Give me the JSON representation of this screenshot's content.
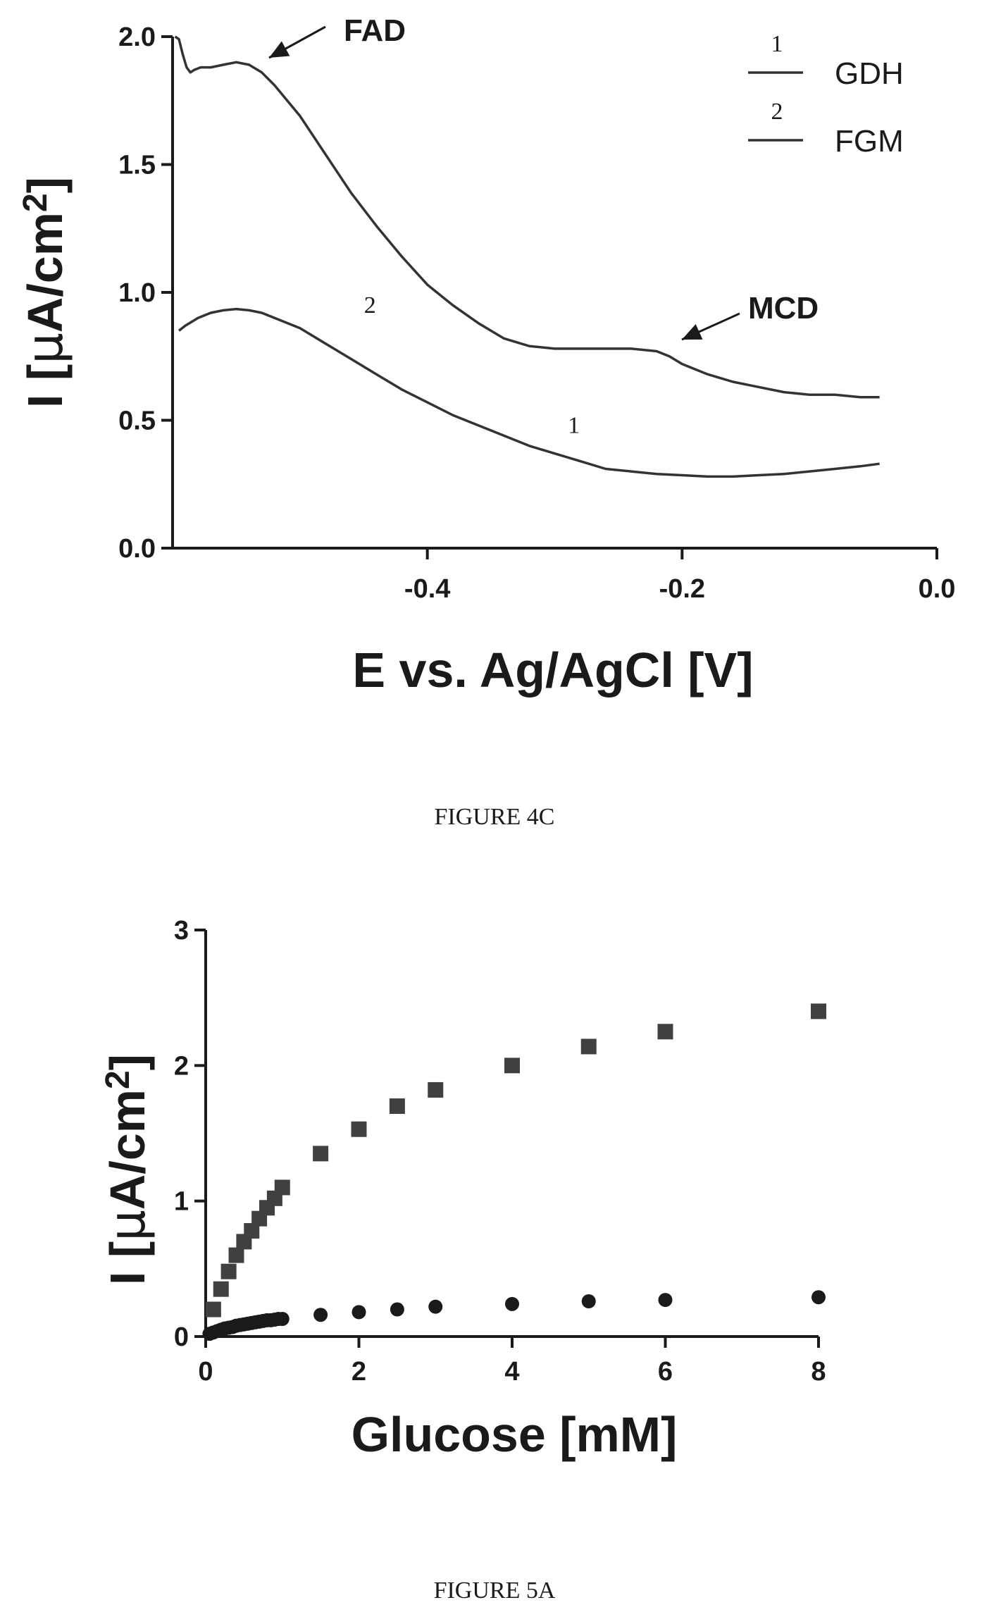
{
  "chart_data": [
    {
      "type": "line",
      "xlabel": "E vs. Ag/AgCl [V]",
      "ylabel_main": "I [",
      "ylabel_mu": "μ",
      "ylabel_unit": "A/cm",
      "ylabel_sup": "2",
      "ylabel_close": "]",
      "xlim": [
        -0.6,
        0.0
      ],
      "ylim": [
        0.0,
        2.0
      ],
      "xticks": [
        "-0.4",
        "-0.2",
        "0.0"
      ],
      "xtick_values": [
        -0.4,
        -0.2,
        0.0
      ],
      "yticks": [
        "0.0",
        "0.5",
        "1.0",
        "1.5",
        "2.0"
      ],
      "ytick_values": [
        0.0,
        0.5,
        1.0,
        1.5,
        2.0
      ],
      "legend_position": "top-right",
      "legend": [
        {
          "number": "1",
          "name": "GDH"
        },
        {
          "number": "2",
          "name": "FGM"
        }
      ],
      "annotations": [
        {
          "text": "FAD",
          "x": -0.54,
          "y": 1.9
        },
        {
          "text": "MCD",
          "x": -0.2,
          "y": 0.78
        }
      ],
      "series": [
        {
          "name": "GDH",
          "label": "1",
          "label_at": [
            -0.285,
            0.45
          ],
          "x": [
            -0.595,
            -0.59,
            -0.58,
            -0.57,
            -0.56,
            -0.55,
            -0.54,
            -0.53,
            -0.52,
            -0.5,
            -0.48,
            -0.46,
            -0.44,
            -0.42,
            -0.4,
            -0.38,
            -0.36,
            -0.34,
            -0.32,
            -0.3,
            -0.28,
            -0.26,
            -0.24,
            -0.22,
            -0.2,
            -0.18,
            -0.16,
            -0.14,
            -0.12,
            -0.1,
            -0.08,
            -0.06,
            -0.045
          ],
          "y": [
            0.85,
            0.87,
            0.9,
            0.92,
            0.93,
            0.935,
            0.93,
            0.92,
            0.9,
            0.86,
            0.8,
            0.74,
            0.68,
            0.62,
            0.57,
            0.52,
            0.48,
            0.44,
            0.4,
            0.37,
            0.34,
            0.31,
            0.3,
            0.29,
            0.285,
            0.28,
            0.28,
            0.285,
            0.29,
            0.3,
            0.31,
            0.32,
            0.33
          ]
        },
        {
          "name": "FGM",
          "label": "2",
          "label_at": [
            -0.445,
            0.92
          ],
          "x": [
            -0.598,
            -0.595,
            -0.592,
            -0.589,
            -0.586,
            -0.583,
            -0.578,
            -0.57,
            -0.56,
            -0.55,
            -0.54,
            -0.53,
            -0.52,
            -0.5,
            -0.48,
            -0.46,
            -0.44,
            -0.42,
            -0.4,
            -0.38,
            -0.36,
            -0.34,
            -0.32,
            -0.3,
            -0.28,
            -0.26,
            -0.24,
            -0.22,
            -0.21,
            -0.2,
            -0.18,
            -0.16,
            -0.14,
            -0.12,
            -0.1,
            -0.08,
            -0.06,
            -0.045
          ],
          "y": [
            2.0,
            1.99,
            1.93,
            1.88,
            1.86,
            1.87,
            1.88,
            1.88,
            1.89,
            1.9,
            1.89,
            1.86,
            1.81,
            1.69,
            1.54,
            1.39,
            1.26,
            1.14,
            1.03,
            0.95,
            0.88,
            0.82,
            0.79,
            0.78,
            0.78,
            0.78,
            0.78,
            0.77,
            0.75,
            0.72,
            0.68,
            0.65,
            0.63,
            0.61,
            0.6,
            0.6,
            0.59,
            0.59
          ]
        }
      ]
    },
    {
      "type": "scatter",
      "xlabel": "Glucose [mM]",
      "ylabel_main": "I [",
      "ylabel_mu": "μ",
      "ylabel_unit": "A/cm",
      "ylabel_sup": "2",
      "ylabel_close": "]",
      "xlim": [
        0,
        8
      ],
      "ylim": [
        0,
        3
      ],
      "xticks": [
        "0",
        "2",
        "4",
        "6",
        "8"
      ],
      "xtick_values": [
        0,
        2,
        4,
        6,
        8
      ],
      "yticks": [
        "0",
        "1",
        "2",
        "3"
      ],
      "ytick_values": [
        0,
        1,
        2,
        3
      ],
      "series": [
        {
          "marker": "square",
          "x": [
            0.1,
            0.2,
            0.3,
            0.4,
            0.5,
            0.6,
            0.7,
            0.8,
            0.9,
            1.0,
            1.5,
            2.0,
            2.5,
            3.0,
            4.0,
            5.0,
            6.0,
            8.0
          ],
          "y": [
            0.2,
            0.35,
            0.48,
            0.6,
            0.7,
            0.78,
            0.87,
            0.95,
            1.02,
            1.1,
            1.35,
            1.53,
            1.7,
            1.82,
            2.0,
            2.14,
            2.25,
            2.4
          ]
        },
        {
          "marker": "circle",
          "x": [
            0.05,
            0.1,
            0.15,
            0.2,
            0.25,
            0.3,
            0.35,
            0.4,
            0.45,
            0.5,
            0.55,
            0.6,
            0.65,
            0.7,
            0.75,
            0.8,
            0.85,
            0.9,
            0.95,
            1.0,
            1.5,
            2.0,
            2.5,
            3.0,
            4.0,
            5.0,
            6.0,
            8.0
          ],
          "y": [
            0.02,
            0.03,
            0.04,
            0.05,
            0.06,
            0.065,
            0.07,
            0.08,
            0.085,
            0.09,
            0.095,
            0.1,
            0.105,
            0.11,
            0.115,
            0.12,
            0.12,
            0.125,
            0.13,
            0.13,
            0.16,
            0.18,
            0.2,
            0.22,
            0.24,
            0.26,
            0.27,
            0.29
          ]
        }
      ]
    }
  ],
  "captions": {
    "top": "FIGURE 4C",
    "bottom": "FIGURE 5A"
  }
}
